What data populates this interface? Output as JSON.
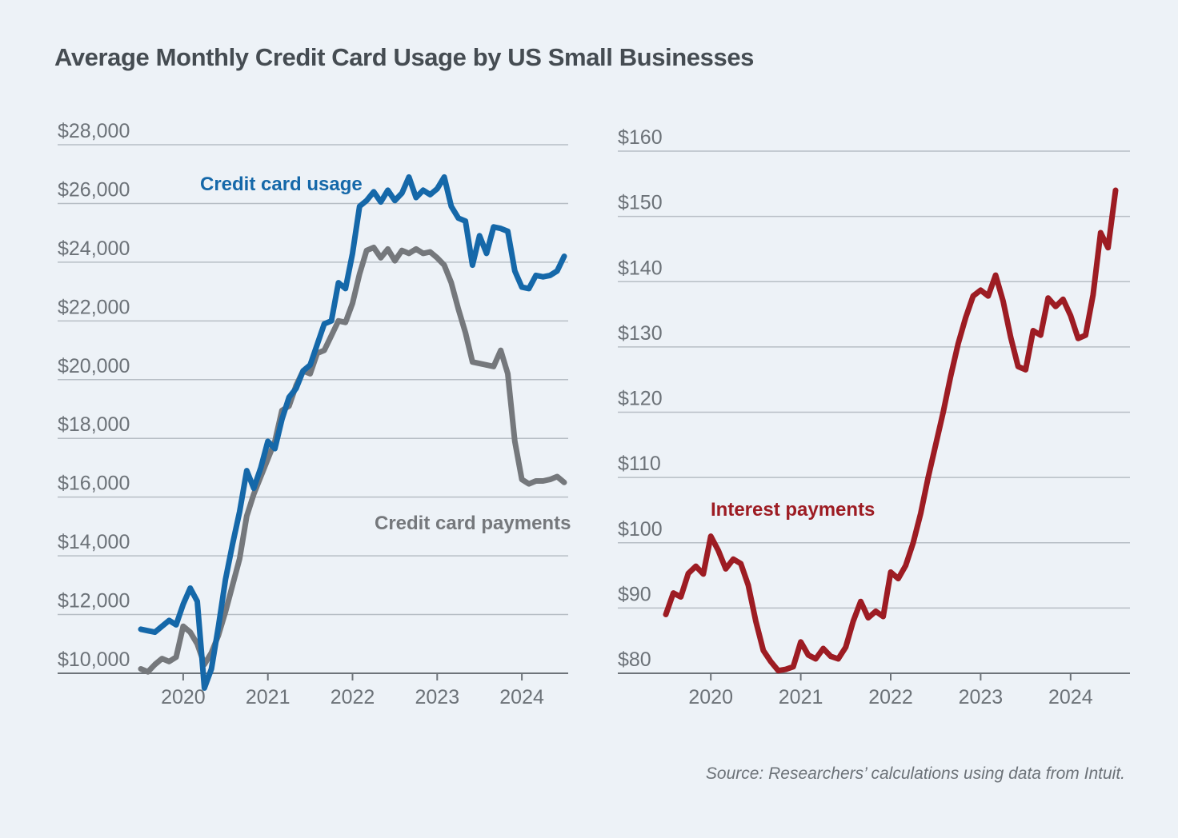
{
  "title": "Average Monthly Credit Card Usage by US Small Businesses",
  "source": "Source: Researchers’ calculations using data from Intuit.",
  "colors": {
    "background": "#EDF2F7",
    "title_text": "#454C52",
    "axis_text": "#6C7278",
    "gridline": "#B7BEC5",
    "axis_line": "#6E747A",
    "usage": "#1568A9",
    "payments": "#75787C",
    "interest": "#9D1C23"
  },
  "chart_data": [
    {
      "type": "line",
      "id": "usage-payments",
      "x_unit": "month",
      "x_start": "2019-07",
      "x_end": "2024-07",
      "x_tick_labels": [
        "2020",
        "2021",
        "2022",
        "2023",
        "2024"
      ],
      "x_tick_month_indices": [
        6,
        18,
        30,
        42,
        54
      ],
      "ylim": [
        10000,
        28000
      ],
      "grid": true,
      "y_tick_values": [
        10000,
        12000,
        14000,
        16000,
        18000,
        20000,
        22000,
        24000,
        26000,
        28000
      ],
      "y_tick_labels": [
        "$10,000",
        "$12,000",
        "$14,000",
        "$16,000",
        "$18,000",
        "$20,000",
        "$22,000",
        "$24,000",
        "$26,000",
        "$28,000"
      ],
      "series": [
        {
          "name": "Credit card usage",
          "color_key": "usage",
          "values": [
            11500,
            11450,
            11400,
            11600,
            11800,
            11650,
            12350,
            12900,
            12450,
            9500,
            10150,
            11600,
            13200,
            14400,
            15500,
            16900,
            16300,
            17000,
            17900,
            17650,
            18650,
            19400,
            19700,
            20300,
            20500,
            21200,
            21900,
            22000,
            23300,
            23100,
            24300,
            25900,
            26100,
            26400,
            26050,
            26450,
            26100,
            26350,
            26900,
            26200,
            26450,
            26300,
            26500,
            26900,
            25900,
            25500,
            25400,
            23900,
            24900,
            24300,
            25200,
            25150,
            25050,
            23700,
            23150,
            23100,
            23550,
            23500,
            23550,
            23700,
            24200
          ]
        },
        {
          "name": "Credit card payments",
          "color_key": "payments",
          "values": [
            10150,
            10050,
            10300,
            10500,
            10400,
            10550,
            11600,
            11400,
            11000,
            10300,
            10700,
            11300,
            12100,
            13000,
            13900,
            15350,
            16100,
            16700,
            17300,
            17900,
            18950,
            19100,
            19800,
            20300,
            20200,
            20900,
            21000,
            21500,
            22000,
            21950,
            22600,
            23600,
            24400,
            24500,
            24150,
            24450,
            24050,
            24400,
            24300,
            24450,
            24300,
            24350,
            24150,
            23900,
            23300,
            22400,
            21600,
            20600,
            20550,
            20500,
            20450,
            21000,
            20200,
            17900,
            16600,
            16450,
            16550,
            16550,
            16600,
            16700,
            16500
          ]
        }
      ]
    },
    {
      "type": "line",
      "id": "interest",
      "x_unit": "month",
      "x_start": "2019-07",
      "x_end": "2024-07",
      "x_tick_labels": [
        "2020",
        "2021",
        "2022",
        "2023",
        "2024"
      ],
      "x_tick_month_indices": [
        6,
        18,
        30,
        42,
        54
      ],
      "ylim": [
        80,
        160
      ],
      "grid": true,
      "y_tick_values": [
        80,
        90,
        100,
        110,
        120,
        130,
        140,
        150,
        160
      ],
      "y_tick_labels": [
        "$80",
        "$90",
        "$100",
        "$110",
        "$120",
        "$130",
        "$140",
        "$150",
        "$160"
      ],
      "series": [
        {
          "name": "Interest payments",
          "color_key": "interest",
          "values": [
            89.0,
            92.3,
            91.7,
            95.3,
            96.4,
            95.2,
            101.0,
            98.8,
            96.0,
            97.5,
            96.8,
            93.5,
            88.0,
            83.5,
            81.8,
            80.4,
            80.6,
            81.0,
            84.8,
            82.8,
            82.2,
            83.8,
            82.6,
            82.2,
            84.0,
            88.0,
            91.0,
            88.5,
            89.5,
            88.7,
            95.5,
            94.5,
            96.5,
            100.0,
            104.5,
            110.0,
            115.0,
            120.0,
            125.5,
            130.5,
            134.5,
            137.8,
            138.7,
            137.8,
            141.0,
            137.0,
            131.5,
            127.0,
            126.5,
            132.5,
            131.8,
            137.5,
            136.2,
            137.3,
            134.8,
            131.3,
            131.8,
            138.0,
            147.5,
            145.2,
            154.0
          ]
        }
      ]
    }
  ]
}
